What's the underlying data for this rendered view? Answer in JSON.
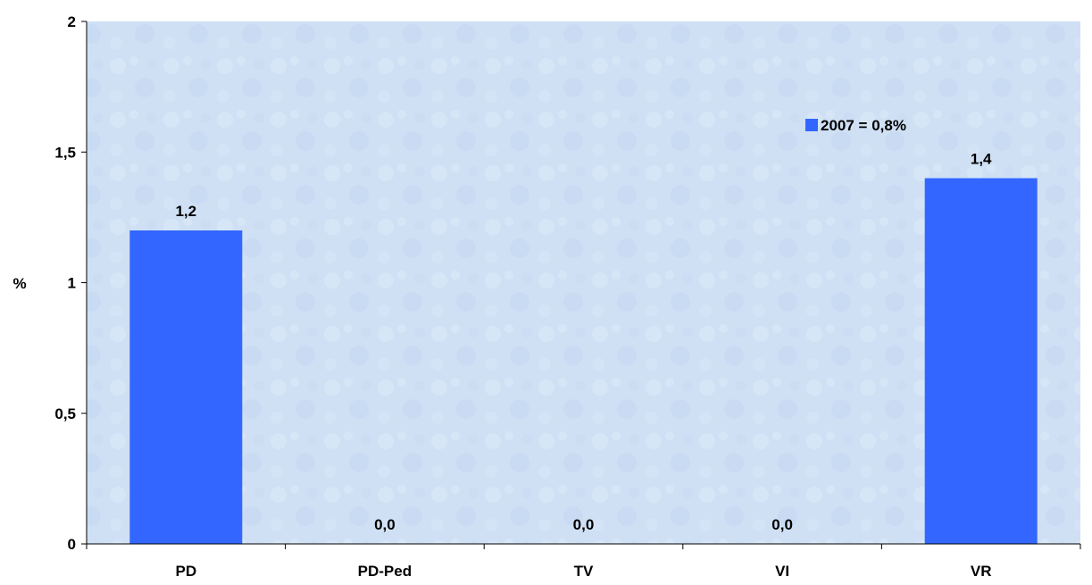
{
  "chart_data": {
    "type": "bar",
    "categories": [
      "PD",
      "PD-Ped",
      "TV",
      "VI",
      "VR"
    ],
    "series": [
      {
        "name": "2007 = 0,8%",
        "values": [
          1.2,
          0.0,
          0.0,
          0.0,
          1.4
        ],
        "value_labels": [
          "1,2",
          "0,0",
          "0,0",
          "0,0",
          "1,4"
        ]
      }
    ],
    "xlabel": "",
    "ylabel": "%",
    "ylim": [
      0,
      2
    ],
    "yticks": [
      0,
      0.5,
      1,
      1.5,
      2
    ],
    "ytick_labels": [
      "0",
      "0,5",
      "1",
      "1,5",
      "2"
    ],
    "grid": false,
    "legend_position": "top-right",
    "colors": {
      "bar": "#3366ff",
      "plot_background": "#cfe0f5",
      "axis": "#000000"
    }
  }
}
